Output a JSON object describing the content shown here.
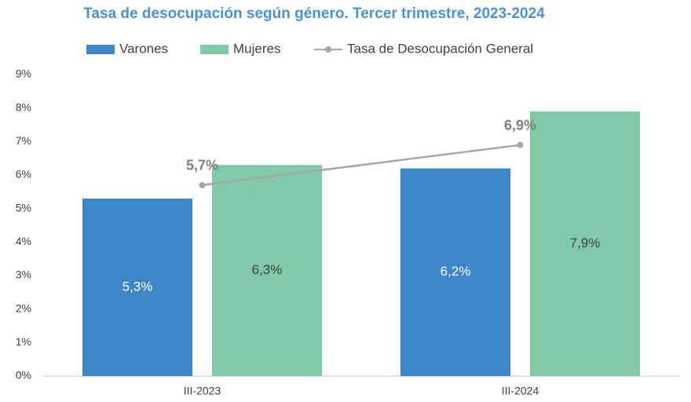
{
  "chart_data": {
    "type": "bar",
    "title": "Tasa de desocupación según género. Tercer trimestre, 2023-2024",
    "categories": [
      "III-2023",
      "III-2024"
    ],
    "series": [
      {
        "name": "Varones",
        "color": "#3f86c8",
        "values": [
          5.3,
          6.2
        ],
        "value_labels": [
          "5,3%",
          "6,2%"
        ]
      },
      {
        "name": "Mujeres",
        "color": "#80caa9",
        "values": [
          6.3,
          7.9
        ],
        "value_labels": [
          "6,3%",
          "7,9%"
        ]
      },
      {
        "name": "Tasa de Desocupación General",
        "type": "line",
        "color": "#a6a6a6",
        "values": [
          5.7,
          6.9
        ],
        "value_labels": [
          "5,7%",
          "6,9%"
        ]
      }
    ],
    "ylim": [
      0,
      9
    ],
    "yticks": [
      {
        "value": 0,
        "label": "0%"
      },
      {
        "value": 1,
        "label": "1%"
      },
      {
        "value": 2,
        "label": "2%"
      },
      {
        "value": 3,
        "label": "3%"
      },
      {
        "value": 4,
        "label": "4%"
      },
      {
        "value": 5,
        "label": "5%"
      },
      {
        "value": 6,
        "label": "6%"
      },
      {
        "value": 7,
        "label": "7%"
      },
      {
        "value": 8,
        "label": "8%"
      },
      {
        "value": 9,
        "label": "9%"
      }
    ],
    "legend": "top"
  }
}
